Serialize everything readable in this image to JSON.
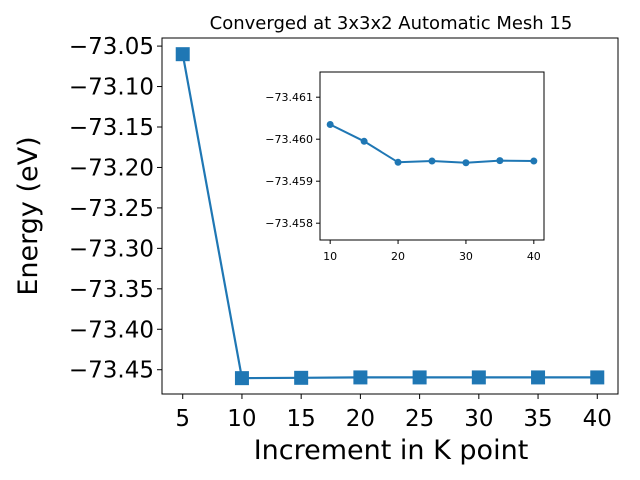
{
  "chart_data": [
    {
      "type": "line",
      "title": "Converged at 3x3x2 Automatic Mesh 15",
      "xlabel": "Increment in K point",
      "ylabel": "Energy (eV)",
      "x": [
        5,
        10,
        15,
        20,
        25,
        30,
        35,
        40
      ],
      "series": [
        {
          "values": [
            -73.06,
            -73.4604,
            -73.46,
            -73.4595,
            -73.4595,
            -73.4595,
            -73.4595,
            -73.4595
          ]
        }
      ],
      "marker": "square",
      "color": "#1f77b4",
      "xlim": [
        3.25,
        41.75
      ],
      "ylim": [
        -73.48,
        -73.04
      ],
      "xticks": [
        5,
        10,
        15,
        20,
        25,
        30,
        35,
        40
      ],
      "xtick_labels": [
        "5",
        "10",
        "15",
        "20",
        "25",
        "30",
        "35",
        "40"
      ],
      "yticks": [
        -73.05,
        -73.1,
        -73.15,
        -73.2,
        -73.25,
        -73.3,
        -73.35,
        -73.4,
        -73.45
      ],
      "ytick_labels": [
        "−73.05",
        "−73.10",
        "−73.15",
        "−73.20",
        "−73.25",
        "−73.30",
        "−73.35",
        "−73.40",
        "−73.45"
      ],
      "grid": false,
      "legend": false
    },
    {
      "type": "line",
      "role": "inset",
      "x": [
        10,
        15,
        20,
        25,
        30,
        35,
        40
      ],
      "series": [
        {
          "values": [
            -73.46035,
            -73.45995,
            -73.45945,
            -73.45948,
            -73.45944,
            -73.45949,
            -73.45948
          ]
        }
      ],
      "marker": "circle",
      "color": "#1f77b4",
      "xlim": [
        8.5,
        41.5
      ],
      "ylim": [
        -73.4576,
        -73.4616
      ],
      "xticks": [
        10,
        20,
        30,
        40
      ],
      "xtick_labels": [
        "10",
        "20",
        "30",
        "40"
      ],
      "yticks": [
        -73.461,
        -73.46,
        -73.459,
        -73.458
      ],
      "ytick_labels": [
        "−73.461",
        "−73.460",
        "−73.459",
        "−73.458"
      ],
      "grid": false,
      "legend": false
    }
  ]
}
